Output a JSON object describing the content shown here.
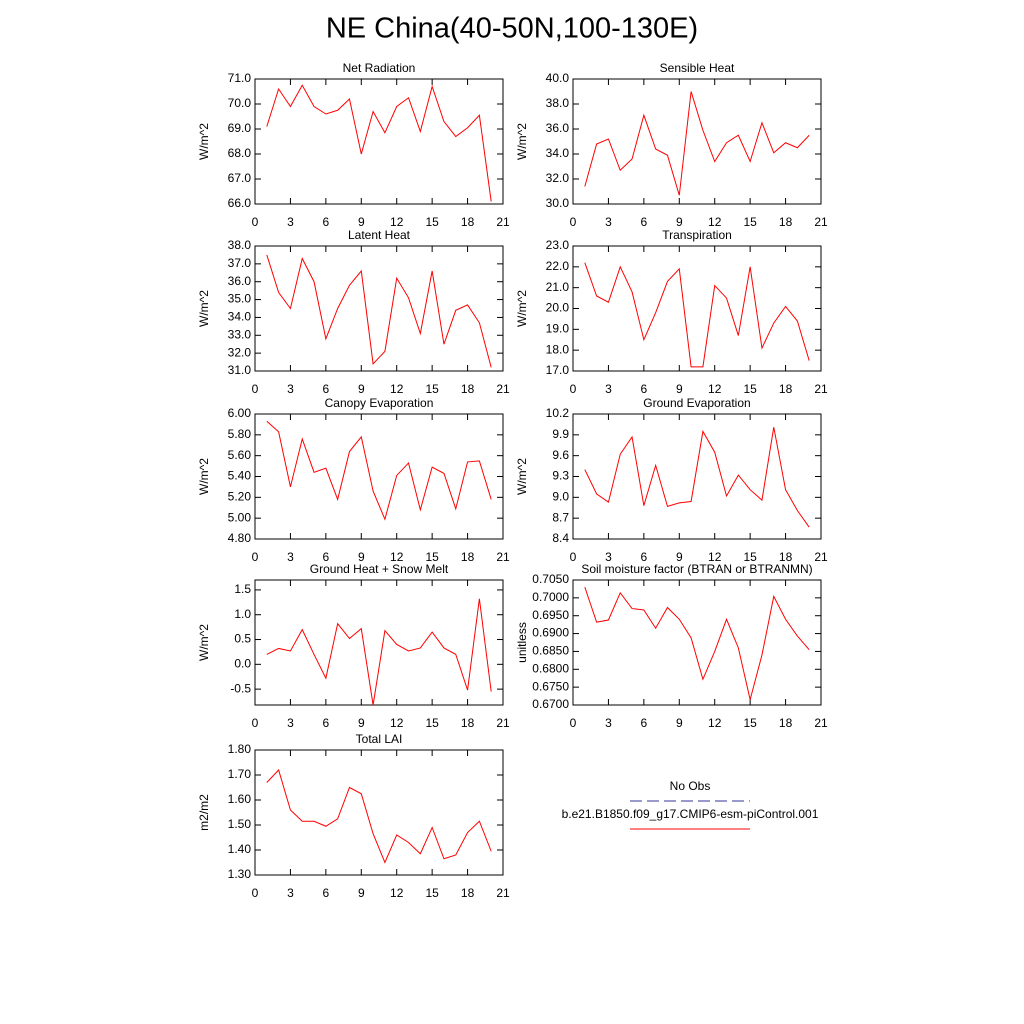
{
  "title": "NE China(40-50N,100-130E)",
  "legend": {
    "entries": [
      {
        "name": "No Obs",
        "color": "#333399",
        "dashed": true
      },
      {
        "name": "b.e21.B1850.f09_g17.CMIP6-esm-piControl.001",
        "color": "#ff0000",
        "dashed": false
      }
    ]
  },
  "chart_data": [
    {
      "type": "line",
      "title": "Net Radiation",
      "y_label": "W/m^2",
      "color": "#ff0000",
      "x": [
        1,
        2,
        3,
        4,
        5,
        6,
        7,
        8,
        9,
        10,
        11,
        12,
        13,
        14,
        15,
        16,
        17,
        18,
        19,
        20
      ],
      "values": [
        69.1,
        70.6,
        69.9,
        70.75,
        69.9,
        69.6,
        69.75,
        70.2,
        68.0,
        69.7,
        68.85,
        69.9,
        70.25,
        68.9,
        70.7,
        69.3,
        68.7,
        69.05,
        69.55,
        66.1
      ],
      "xlim": [
        0,
        21
      ],
      "xticks": [
        0,
        3,
        6,
        9,
        12,
        15,
        18,
        21
      ],
      "ylim": [
        66,
        71
      ],
      "yticks": [
        {
          "value": 66,
          "label": "66.0"
        },
        {
          "value": 67,
          "label": "67.0"
        },
        {
          "value": 68,
          "label": "68.0"
        },
        {
          "value": 69,
          "label": "69.0"
        },
        {
          "value": 70,
          "label": "70.0"
        },
        {
          "value": 71,
          "label": "71.0"
        }
      ]
    },
    {
      "type": "line",
      "title": "Sensible Heat",
      "y_label": "W/m^2",
      "color": "#ff0000",
      "x": [
        1,
        2,
        3,
        4,
        5,
        6,
        7,
        8,
        9,
        10,
        11,
        12,
        13,
        14,
        15,
        16,
        17,
        18,
        19,
        20
      ],
      "values": [
        31.4,
        34.8,
        35.2,
        32.7,
        33.6,
        37.1,
        34.4,
        33.9,
        30.7,
        39.0,
        35.9,
        33.4,
        34.9,
        35.5,
        33.4,
        36.5,
        34.1,
        34.9,
        34.5,
        35.5
      ],
      "xlim": [
        0,
        21
      ],
      "xticks": [
        0,
        3,
        6,
        9,
        12,
        15,
        18,
        21
      ],
      "ylim": [
        30,
        40
      ],
      "yticks": [
        {
          "value": 30,
          "label": "30.0"
        },
        {
          "value": 32,
          "label": "32.0"
        },
        {
          "value": 34,
          "label": "34.0"
        },
        {
          "value": 36,
          "label": "36.0"
        },
        {
          "value": 38,
          "label": "38.0"
        },
        {
          "value": 40,
          "label": "40.0"
        }
      ]
    },
    {
      "type": "line",
      "title": "Latent Heat",
      "y_label": "W/m^2",
      "color": "#ff0000",
      "x": [
        1,
        2,
        3,
        4,
        5,
        6,
        7,
        8,
        9,
        10,
        11,
        12,
        13,
        14,
        15,
        16,
        17,
        18,
        19,
        20
      ],
      "values": [
        37.5,
        35.4,
        34.5,
        37.3,
        36.0,
        32.8,
        34.5,
        35.8,
        36.6,
        31.4,
        32.1,
        36.2,
        35.1,
        33.1,
        36.6,
        32.5,
        34.4,
        34.7,
        33.7,
        31.2
      ],
      "xlim": [
        0,
        21
      ],
      "xticks": [
        0,
        3,
        6,
        9,
        12,
        15,
        18,
        21
      ],
      "ylim": [
        31,
        38
      ],
      "yticks": [
        {
          "value": 31,
          "label": "31.0"
        },
        {
          "value": 32,
          "label": "32.0"
        },
        {
          "value": 33,
          "label": "33.0"
        },
        {
          "value": 34,
          "label": "34.0"
        },
        {
          "value": 35,
          "label": "35.0"
        },
        {
          "value": 36,
          "label": "36.0"
        },
        {
          "value": 37,
          "label": "37.0"
        },
        {
          "value": 38,
          "label": "38.0"
        }
      ]
    },
    {
      "type": "line",
      "title": "Transpiration",
      "y_label": "W/m^2",
      "color": "#ff0000",
      "x": [
        1,
        2,
        3,
        4,
        5,
        6,
        7,
        8,
        9,
        10,
        11,
        12,
        13,
        14,
        15,
        16,
        17,
        18,
        19,
        20
      ],
      "values": [
        22.2,
        20.6,
        20.3,
        22.0,
        20.8,
        18.5,
        19.8,
        21.3,
        21.9,
        17.2,
        17.2,
        21.1,
        20.5,
        18.7,
        22.0,
        18.1,
        19.3,
        20.1,
        19.4,
        17.5
      ],
      "xlim": [
        0,
        21
      ],
      "xticks": [
        0,
        3,
        6,
        9,
        12,
        15,
        18,
        21
      ],
      "ylim": [
        17,
        23
      ],
      "yticks": [
        {
          "value": 17,
          "label": "17.0"
        },
        {
          "value": 18,
          "label": "18.0"
        },
        {
          "value": 19,
          "label": "19.0"
        },
        {
          "value": 20,
          "label": "20.0"
        },
        {
          "value": 21,
          "label": "21.0"
        },
        {
          "value": 22,
          "label": "22.0"
        },
        {
          "value": 23,
          "label": "23.0"
        }
      ]
    },
    {
      "type": "line",
      "title": "Canopy Evaporation",
      "y_label": "W/m^2",
      "color": "#ff0000",
      "x": [
        1,
        2,
        3,
        4,
        5,
        6,
        7,
        8,
        9,
        10,
        11,
        12,
        13,
        14,
        15,
        16,
        17,
        18,
        19,
        20
      ],
      "values": [
        5.93,
        5.83,
        5.3,
        5.76,
        5.44,
        5.48,
        5.18,
        5.64,
        5.78,
        5.26,
        4.99,
        5.41,
        5.53,
        5.08,
        5.49,
        5.43,
        5.09,
        5.54,
        5.55,
        5.18
      ],
      "xlim": [
        0,
        21
      ],
      "xticks": [
        0,
        3,
        6,
        9,
        12,
        15,
        18,
        21
      ],
      "ylim": [
        4.8,
        6.0
      ],
      "yticks": [
        {
          "value": 4.8,
          "label": "4.80"
        },
        {
          "value": 5.0,
          "label": "5.00"
        },
        {
          "value": 5.2,
          "label": "5.20"
        },
        {
          "value": 5.4,
          "label": "5.40"
        },
        {
          "value": 5.6,
          "label": "5.60"
        },
        {
          "value": 5.8,
          "label": "5.80"
        },
        {
          "value": 6.0,
          "label": "6.00"
        }
      ]
    },
    {
      "type": "line",
      "title": "Ground Evaporation",
      "y_label": "W/m^2",
      "color": "#ff0000",
      "x": [
        1,
        2,
        3,
        4,
        5,
        6,
        7,
        8,
        9,
        10,
        11,
        12,
        13,
        14,
        15,
        16,
        17,
        18,
        19,
        20
      ],
      "values": [
        9.4,
        9.05,
        8.93,
        9.62,
        9.87,
        8.88,
        9.46,
        8.87,
        8.92,
        8.94,
        9.95,
        9.65,
        9.02,
        9.32,
        9.11,
        8.96,
        10.01,
        9.11,
        8.81,
        8.57
      ],
      "xlim": [
        0,
        21
      ],
      "xticks": [
        0,
        3,
        6,
        9,
        12,
        15,
        18,
        21
      ],
      "ylim": [
        8.4,
        10.2
      ],
      "yticks": [
        8.4,
        8.7,
        {
          "value": 9.0,
          "label": "9.0"
        },
        9.3,
        9.6,
        9.9,
        10.2
      ]
    },
    {
      "type": "line",
      "title": "Ground Heat + Snow Melt",
      "y_label": "W/m^2",
      "color": "#ff0000",
      "x": [
        1,
        2,
        3,
        4,
        5,
        6,
        7,
        8,
        9,
        10,
        11,
        12,
        13,
        14,
        15,
        16,
        17,
        18,
        19,
        20
      ],
      "values": [
        0.2,
        0.32,
        0.27,
        0.7,
        0.2,
        -0.28,
        0.82,
        0.52,
        0.72,
        -0.82,
        0.68,
        0.4,
        0.27,
        0.33,
        0.65,
        0.33,
        0.2,
        -0.52,
        1.32,
        -0.55
      ],
      "xlim": [
        0,
        21
      ],
      "xticks": [
        0,
        3,
        6,
        9,
        12,
        15,
        18,
        21
      ],
      "ylim": [
        -0.82,
        1.7
      ],
      "yticks": [
        -0.5,
        {
          "value": 0,
          "label": "0.0"
        },
        0.5,
        {
          "value": 1,
          "label": "1.0"
        },
        1.5
      ]
    },
    {
      "type": "line",
      "title": "Soil moisture factor (BTRAN or BTRANMN)",
      "y_label": "unitless",
      "color": "#ff0000",
      "x": [
        1,
        2,
        3,
        4,
        5,
        6,
        7,
        8,
        9,
        10,
        11,
        12,
        13,
        14,
        15,
        16,
        17,
        18,
        19,
        20
      ],
      "values": [
        0.703,
        0.6932,
        0.6938,
        0.7014,
        0.697,
        0.6966,
        0.6915,
        0.6973,
        0.694,
        0.6888,
        0.6772,
        0.685,
        0.694,
        0.686,
        0.6715,
        0.684,
        0.7004,
        0.694,
        0.6893,
        0.6855
      ],
      "xlim": [
        0,
        21
      ],
      "xticks": [
        0,
        3,
        6,
        9,
        12,
        15,
        18,
        21
      ],
      "ylim": [
        0.67,
        0.705
      ],
      "yticks": [
        {
          "value": 0.67,
          "label": "0.6700"
        },
        {
          "value": 0.675,
          "label": "0.6750"
        },
        {
          "value": 0.68,
          "label": "0.6800"
        },
        {
          "value": 0.685,
          "label": "0.6850"
        },
        {
          "value": 0.69,
          "label": "0.6900"
        },
        {
          "value": 0.695,
          "label": "0.6950"
        },
        {
          "value": 0.7,
          "label": "0.7000"
        },
        {
          "value": 0.705,
          "label": "0.7050"
        }
      ]
    },
    {
      "type": "line",
      "title": "Total LAI",
      "y_label": "m2/m2",
      "color": "#ff0000",
      "x": [
        1,
        2,
        3,
        4,
        5,
        6,
        7,
        8,
        9,
        10,
        11,
        12,
        13,
        14,
        15,
        16,
        17,
        18,
        19,
        20
      ],
      "values": [
        1.67,
        1.72,
        1.56,
        1.515,
        1.515,
        1.495,
        1.525,
        1.65,
        1.625,
        1.465,
        1.35,
        1.46,
        1.43,
        1.385,
        1.49,
        1.365,
        1.38,
        1.47,
        1.515,
        1.395
      ],
      "xlim": [
        0,
        21
      ],
      "xticks": [
        0,
        3,
        6,
        9,
        12,
        15,
        18,
        21
      ],
      "ylim": [
        1.3,
        1.8
      ],
      "yticks": [
        {
          "value": 1.3,
          "label": "1.30"
        },
        {
          "value": 1.4,
          "label": "1.40"
        },
        {
          "value": 1.5,
          "label": "1.50"
        },
        {
          "value": 1.6,
          "label": "1.60"
        },
        {
          "value": 1.7,
          "label": "1.70"
        },
        {
          "value": 1.8,
          "label": "1.80"
        }
      ]
    }
  ]
}
